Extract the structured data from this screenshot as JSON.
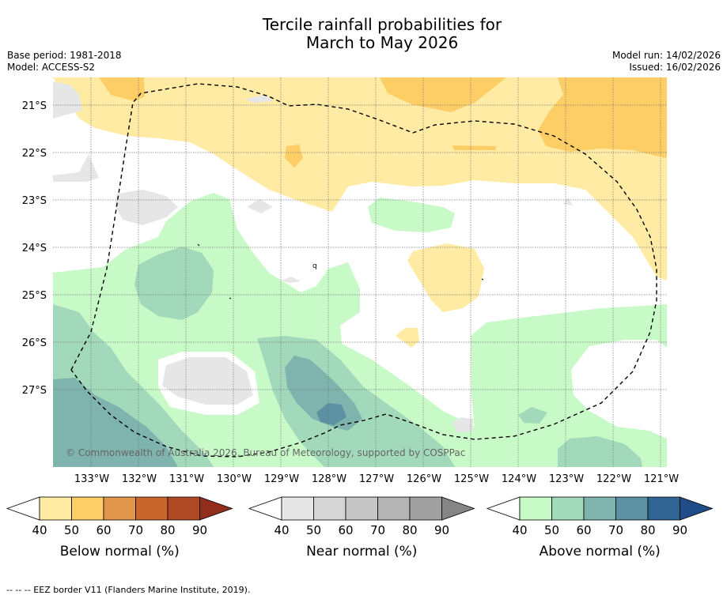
{
  "title": {
    "line1": "Tercile rainfall probabilities for",
    "line2": "March to May 2026"
  },
  "meta": {
    "base_period": "Base period: 1981-2018",
    "model": "Model: ACCESS-S2",
    "model_run": "Model run: 14/02/2026",
    "issued": "Issued: 16/02/2026"
  },
  "map": {
    "lat_labels": [
      "21°S",
      "22°S",
      "23°S",
      "24°S",
      "25°S",
      "26°S",
      "27°S"
    ],
    "lon_labels": [
      "133°W",
      "132°W",
      "131°W",
      "130°W",
      "129°W",
      "128°W",
      "127°W",
      "126°W",
      "125°W",
      "124°W",
      "123°W",
      "122°W",
      "121°W"
    ],
    "copyright": "© Commonwealth of Australia 2026, Bureau of Meteorology, supported by COSPPac",
    "island_label": "q"
  },
  "legends": [
    {
      "name": "below",
      "label": "Below normal (%)",
      "ticks": [
        "40",
        "50",
        "60",
        "70",
        "80",
        "90"
      ],
      "colors": [
        "#ffffff",
        "#ffeba3",
        "#fdcd66",
        "#e0964b",
        "#c9662e",
        "#ae4825",
        "#922d1c"
      ]
    },
    {
      "name": "near",
      "label": "Near normal (%)",
      "ticks": [
        "40",
        "50",
        "60",
        "70",
        "80",
        "90"
      ],
      "colors": [
        "#ffffff",
        "#e6e6e6",
        "#d6d6d6",
        "#c6c6c6",
        "#b4b4b4",
        "#a0a0a0",
        "#858585"
      ]
    },
    {
      "name": "above",
      "label": "Above normal (%)",
      "ticks": [
        "40",
        "50",
        "60",
        "70",
        "80",
        "90"
      ],
      "colors": [
        "#ffffff",
        "#c8fac8",
        "#a2d9bb",
        "#7fb3ad",
        "#5b91a1",
        "#306593",
        "#204d87"
      ]
    }
  ],
  "footnote": "--  --  -- EEZ border V11 (Flanders Marine Institute, 2019).",
  "colors": {
    "below_50": "#ffeba3",
    "below_60": "#fdcd66",
    "near_50": "#e6e6e6",
    "above_50": "#c8fac8",
    "above_60": "#a2d9bb",
    "above_70": "#7fb3ad",
    "above_80": "#5b91a1",
    "above_90": "#306593"
  }
}
